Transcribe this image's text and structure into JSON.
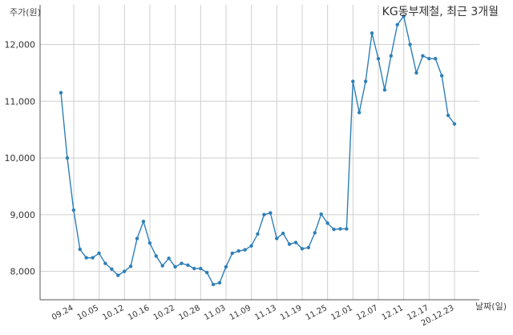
{
  "chart_data": {
    "type": "line",
    "title": "KG동부제철, 최근 3개월",
    "ylabel": "주가(원)",
    "xlabel": "날짜(일)",
    "ylim": [
      7500,
      12700
    ],
    "yticks": [
      8000,
      9000,
      10000,
      11000,
      12000
    ],
    "ytick_labels": [
      "8,000",
      "9,000",
      "10,000",
      "11,000",
      "12,000"
    ],
    "xtick_labels": [
      "09.24",
      "10.05",
      "10.12",
      "10.16",
      "10.22",
      "10.28",
      "11.03",
      "11.09",
      "11.13",
      "11.19",
      "11.25",
      "12.01",
      "12.07",
      "12.11",
      "12.17",
      "20.12.23"
    ],
    "grid": true,
    "series_color": "#2e7fb8",
    "series": [
      {
        "values": [
          11150,
          10000,
          9080,
          8390,
          8240,
          8240,
          8320,
          8140,
          8040,
          7930,
          8000,
          8090,
          8580,
          8880,
          8500,
          8270,
          8100,
          8230,
          8080,
          8140,
          8110,
          8050,
          8050,
          7980,
          7770,
          7800,
          8080,
          8320,
          8360,
          8380,
          8450,
          8660,
          9000,
          9030,
          8580,
          8670,
          8480,
          8510,
          8400,
          8420,
          8680,
          9010,
          8850,
          8740,
          8750,
          8750,
          11350,
          10800,
          11350,
          12200,
          11750,
          11200,
          11800,
          12350,
          12500,
          12000,
          11500,
          11800,
          11750,
          11750,
          11450,
          10750,
          10600
        ]
      }
    ]
  }
}
